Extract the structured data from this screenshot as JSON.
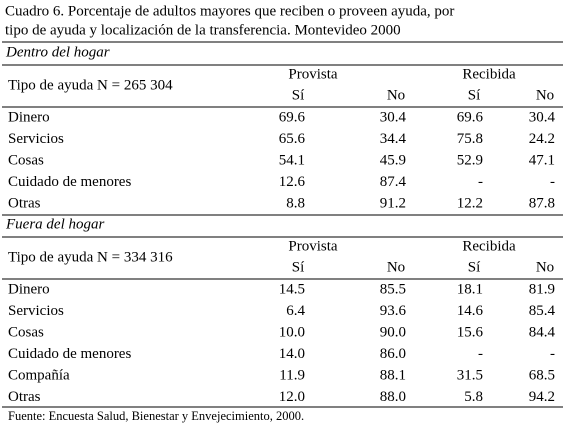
{
  "title_lines": [
    "Cuadro 6. Porcentaje de adultos mayores que reciben o proveen ayuda, por",
    "tipo de ayuda y localización de la transferencia. Montevideo 2000"
  ],
  "sections": [
    {
      "name": "Dentro del hogar",
      "row_header": "Tipo de ayuda  N = 265 304",
      "groups": [
        "Provista",
        "Recibida"
      ],
      "subheaders": [
        "Sí",
        "No",
        "Sí",
        "No"
      ],
      "rows": [
        [
          "Dinero",
          "69.6",
          "30.4",
          "69.6",
          "30.4"
        ],
        [
          "Servicios",
          "65.6",
          "34.4",
          "75.8",
          "24.2"
        ],
        [
          "Cosas",
          "54.1",
          "45.9",
          "52.9",
          "47.1"
        ],
        [
          "Cuidado de menores",
          "12.6",
          "87.4",
          "-",
          "-"
        ],
        [
          "Otras",
          "8.8",
          "91.2",
          "12.2",
          "87.8"
        ]
      ]
    },
    {
      "name": "Fuera del hogar",
      "row_header": "Tipo de ayuda  N = 334 316",
      "groups": [
        "Provista",
        "Recibida"
      ],
      "subheaders": [
        "Sí",
        "No",
        "Sí",
        "No"
      ],
      "rows": [
        [
          "Dinero",
          "14.5",
          "85.5",
          "18.1",
          "81.9"
        ],
        [
          "Servicios",
          "6.4",
          "93.6",
          "14.6",
          "85.4"
        ],
        [
          "Cosas",
          "10.0",
          "90.0",
          "15.6",
          "84.4"
        ],
        [
          "Cuidado de menores",
          "14.0",
          "86.0",
          "-",
          "-"
        ],
        [
          "Compañía",
          "11.9",
          "88.1",
          "31.5",
          "68.5"
        ],
        [
          "Otras",
          "12.0",
          "88.0",
          "5.8",
          "94.2"
        ]
      ]
    }
  ],
  "source": "Fuente: Encuesta Salud, Bienestar y Envejecimiento, 2000."
}
